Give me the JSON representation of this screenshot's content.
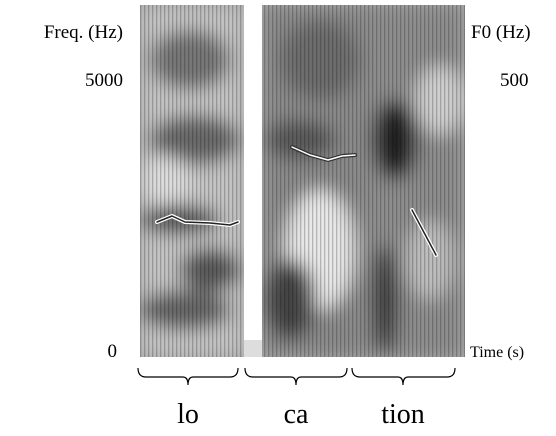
{
  "left_axis": {
    "label": "Freq. (Hz)",
    "ticks": [
      "5000",
      "0"
    ]
  },
  "right_axis": {
    "label": "F0 (Hz)",
    "ticks": [
      "500"
    ]
  },
  "x_axis_label": "Time (s)",
  "syllables": [
    "lo",
    "ca",
    "tion"
  ]
}
